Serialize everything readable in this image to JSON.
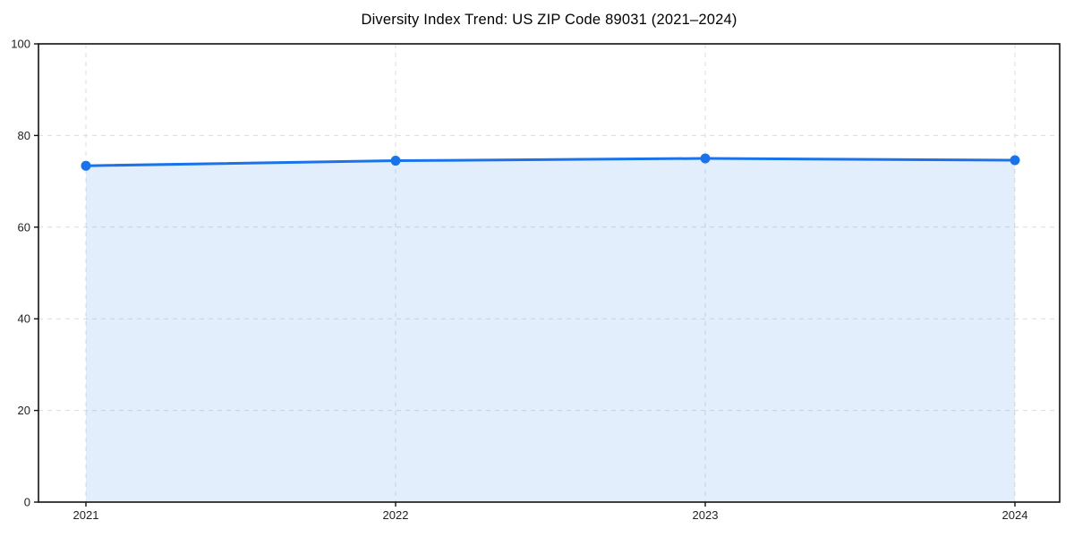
{
  "page": {
    "background_color": "#ffffff"
  },
  "chart_data": {
    "type": "line",
    "title": "Diversity Index Trend: US ZIP Code 89031 (2021–2024)",
    "series_name": "Diversity Index",
    "categories": [
      "2021",
      "2022",
      "2023",
      "2024"
    ],
    "values": [
      73.4,
      74.5,
      75.0,
      74.6
    ],
    "xlabel": "",
    "ylabel": "",
    "ylim": [
      0,
      100
    ],
    "yticks": [
      0,
      20,
      40,
      60,
      80,
      100
    ],
    "grid": true,
    "grid_style": "dashed",
    "legend": "none",
    "marker": "circle",
    "area_fill": true,
    "colors": {
      "line": "#1a73e8",
      "marker": "#1a73e8",
      "area_fill": "rgba(26,115,232,0.12)",
      "grid": "#dcdcdc",
      "axis": "#111111",
      "tick_label": "#222222",
      "title": "#000000",
      "background": "#ffffff"
    }
  }
}
